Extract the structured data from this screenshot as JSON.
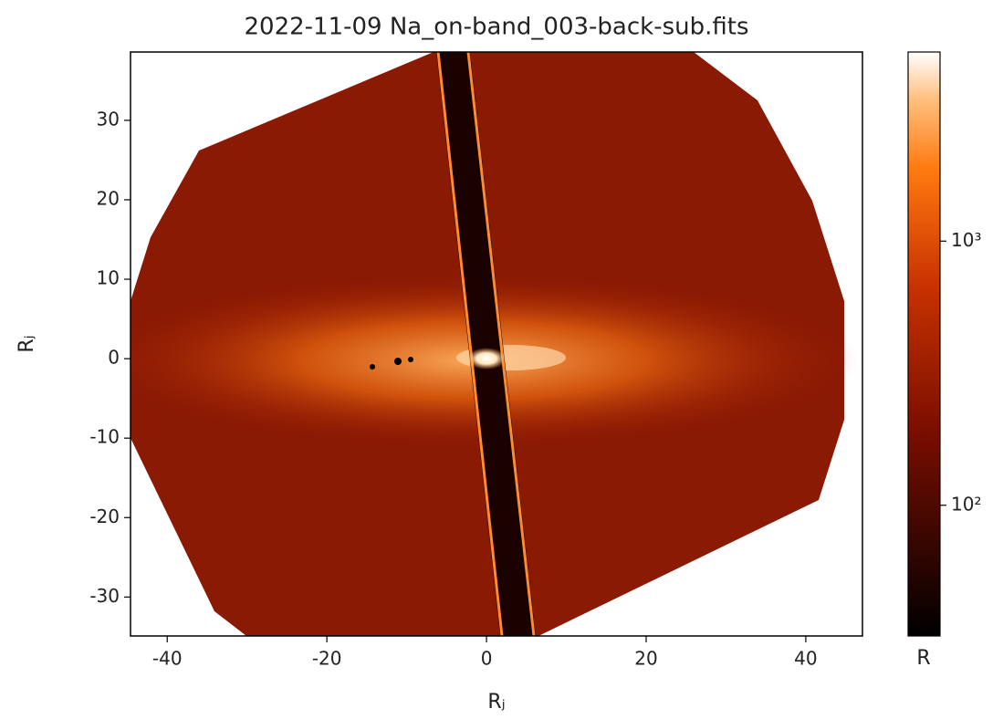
{
  "chart_data": {
    "type": "image",
    "title": "2022-11-09 Na_on-band_003-back-sub.fits",
    "xlabel": "Rⱼ",
    "ylabel": "Rⱼ",
    "xlim": [
      -44.6,
      47.1
    ],
    "ylim": [
      -34.9,
      38.6
    ],
    "xticks": [
      -40,
      -20,
      0,
      20,
      40
    ],
    "yticks": [
      -30,
      -20,
      -10,
      0,
      10,
      20,
      30
    ],
    "colorbar": {
      "label": "R",
      "scale": "log",
      "lim": [
        32,
        5200
      ],
      "ticks": [
        {
          "value": 100,
          "label": "10²"
        },
        {
          "value": 1000,
          "label": "10³"
        }
      ]
    }
  }
}
